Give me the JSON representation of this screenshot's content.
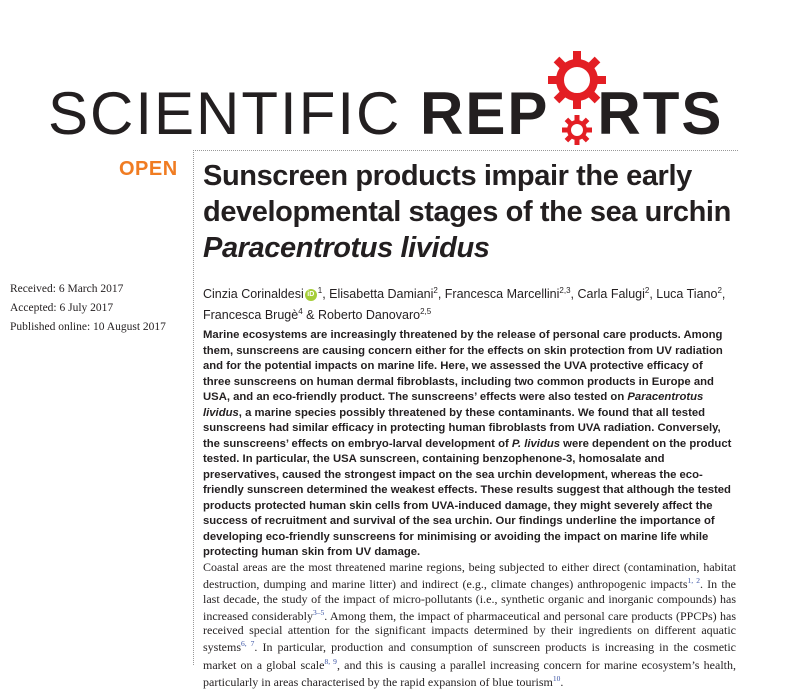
{
  "journal": {
    "name_thin": "SCIENTIFIC ",
    "name_bold": "REP",
    "name_bold_tail": "RTS",
    "brand_red": "#e31e24",
    "accent_orange": "#f07c22"
  },
  "article": {
    "access_label": "OPEN",
    "title_part1": "Sunscreen products impair the early developmental stages of the sea urchin ",
    "title_italic": "Paracentrotus lividus",
    "dates": {
      "received": "Received: 6 March 2017",
      "accepted": "Accepted: 6 July 2017",
      "published": "Published online: 10 August 2017"
    },
    "authors": [
      {
        "name": "Cinzia Corinaldesi",
        "aff": "1",
        "orcid": true
      },
      {
        "name": "Elisabetta Damiani",
        "aff": "2"
      },
      {
        "name": "Francesca Marcellini",
        "aff": "2,3"
      },
      {
        "name": "Carla Falugi",
        "aff": "2"
      },
      {
        "name": "Luca Tiano",
        "aff": "2"
      },
      {
        "name": "Francesca Brugè",
        "aff": "4"
      },
      {
        "name": "Roberto Danovaro",
        "aff": "2,5"
      }
    ],
    "orcid_icon": "orcid-icon",
    "abstract": {
      "p1": "Marine ecosystems are increasingly threatened by the release of personal care products. Among them, sunscreens are causing concern either for the effects on skin protection from UV radiation and for the potential impacts on marine life. Here, we assessed the UVA protective efficacy of three sunscreens on human dermal fibroblasts, including two common products in Europe and USA, and an eco-friendly product. The sunscreens’ effects were also tested on ",
      "i1": "Paracentrotus lividus",
      "p2": ", a marine species possibly threatened by these contaminants. We found that all tested sunscreens had similar efficacy in protecting human fibroblasts from UVA radiation. Conversely, the sunscreens’ effects on embryo-larval development of ",
      "i2": "P. lividus",
      "p3": " were dependent on the product tested. In particular, the USA sunscreen, containing benzophenone-3, homosalate and preservatives, caused the strongest impact on the sea urchin development, whereas the eco-friendly sunscreen determined the weakest effects. These results suggest that although the tested products protected human skin cells from UVA-induced damage, they might severely affect the success of recruitment and survival of the sea urchin. Our findings underline the importance of developing eco-friendly sunscreens for minimising or avoiding the impact on marine life while protecting human skin from UV damage."
    },
    "body": {
      "s1": "Coastal areas are the most threatened marine regions, being subjected to either direct (contamination, habitat destruction, dumping and marine litter) and indirect (e.g., climate changes) anthropogenic impacts",
      "r1": "1, 2",
      "s2": ". In the last decade, the study of the impact of micro-pollutants (i.e., synthetic organic and inorganic compounds) has increased considerably",
      "r2": "3–5",
      "s3": ". Among them, the impact of pharmaceutical and personal care products (PPCPs) has received special attention for the significant impacts determined by their ingredients on different aquatic systems",
      "r3": "6, 7",
      "s4": ". In particular, production and consumption of sunscreen products is increasing in the cosmetic market on a global scale",
      "r4": "8, 9",
      "s5": ", and this is causing a parallel increasing concern for marine ecosystem’s health, particularly in areas characterised by the rapid expansion of blue tourism",
      "r5": "10",
      "s6": "."
    }
  }
}
